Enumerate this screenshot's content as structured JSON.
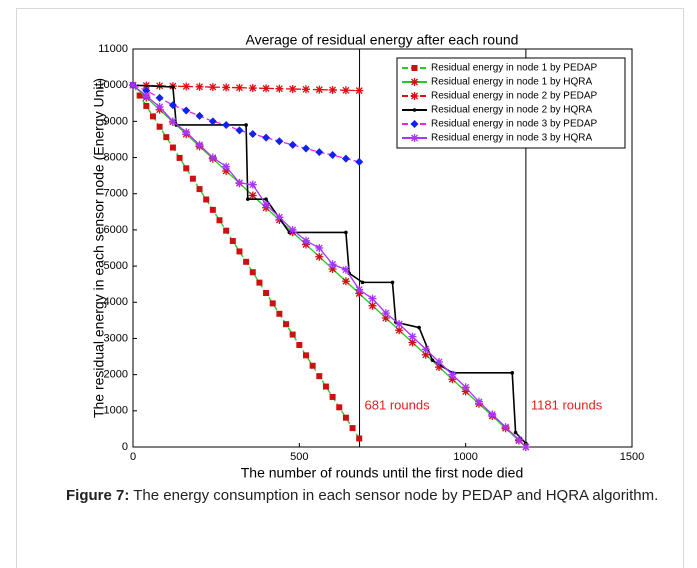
{
  "chart_data": {
    "type": "line",
    "title": "Average of residual energy after each round",
    "xlabel": "The number of rounds until the first node died",
    "ylabel": "The residual energy in each sensor node (Energy Unit)",
    "xlim": [
      0,
      1500
    ],
    "xticks": [
      0,
      500,
      1000,
      1500
    ],
    "ylim": [
      0,
      11000
    ],
    "yticks": [
      0,
      1000,
      2000,
      3000,
      4000,
      5000,
      6000,
      7000,
      8000,
      9000,
      10000,
      11000
    ],
    "grid": false,
    "legend": "upper right",
    "vlines": [
      {
        "x": 681,
        "label": "681 rounds"
      },
      {
        "x": 1181,
        "label": "1181 rounds"
      }
    ],
    "annotation_color": "#e02020",
    "series": [
      {
        "name": "Residual energy in node 1 by PEDAP",
        "color": "#22cc22",
        "dash": true,
        "marker": "square",
        "marker_color": "#cc1111",
        "x": [
          0,
          20,
          40,
          60,
          80,
          100,
          120,
          140,
          160,
          180,
          200,
          220,
          240,
          260,
          280,
          300,
          320,
          340,
          360,
          380,
          400,
          420,
          440,
          460,
          480,
          500,
          520,
          540,
          560,
          580,
          600,
          620,
          640,
          660,
          680
        ],
        "values": [
          10000,
          9713,
          9426,
          9138,
          8851,
          8564,
          8277,
          7990,
          7702,
          7415,
          7128,
          6841,
          6554,
          6267,
          5979,
          5692,
          5405,
          5118,
          4831,
          4543,
          4256,
          3969,
          3682,
          3395,
          3107,
          2820,
          2533,
          2246,
          1958,
          1671,
          1384,
          1097,
          810,
          523,
          235
        ]
      },
      {
        "name": "Residual energy in node 1 by HQRA",
        "color": "#22cc22",
        "dash": false,
        "marker": "star",
        "marker_color": "#cc1111",
        "x": [
          0,
          40,
          80,
          120,
          160,
          200,
          240,
          280,
          320,
          360,
          400,
          440,
          480,
          520,
          560,
          600,
          640,
          680,
          720,
          760,
          800,
          840,
          880,
          920,
          960,
          1000,
          1040,
          1080,
          1120,
          1160,
          1181
        ],
        "values": [
          10000,
          9661,
          9323,
          8984,
          8645,
          8307,
          7968,
          7629,
          7291,
          6952,
          6613,
          6275,
          5936,
          5597,
          5258,
          4920,
          4581,
          4242,
          3904,
          3565,
          3226,
          2888,
          2549,
          2210,
          1872,
          1533,
          1194,
          856,
          517,
          178,
          0
        ]
      },
      {
        "name": "Residual energy in node 2 by PEDAP",
        "color": "#dd1111",
        "dash": true,
        "marker": "star",
        "marker_color": "#dd1111",
        "x": [
          0,
          40,
          80,
          120,
          160,
          200,
          240,
          280,
          320,
          360,
          400,
          440,
          480,
          520,
          560,
          600,
          640,
          680
        ],
        "values": [
          10000,
          9991,
          9982,
          9974,
          9965,
          9956,
          9947,
          9938,
          9930,
          9921,
          9912,
          9903,
          9894,
          9886,
          9877,
          9868,
          9859,
          9850
        ]
      },
      {
        "name": "Residual energy in node 2 by HQRA",
        "color": "#000000",
        "dash": false,
        "marker": "dot",
        "marker_color": "#000000",
        "x": [
          0,
          120,
          130,
          340,
          345,
          400,
          470,
          640,
          650,
          690,
          780,
          790,
          860,
          900,
          960,
          1140,
          1150,
          1181
        ],
        "values": [
          10000,
          9950,
          8900,
          8900,
          6850,
          6850,
          5930,
          5930,
          4800,
          4550,
          4550,
          3450,
          3300,
          2400,
          2050,
          2050,
          400,
          100
        ]
      },
      {
        "name": "Residual energy in node 3 by PEDAP",
        "color": "#ee22ee",
        "dash": true,
        "marker": "diamond",
        "marker_color": "#1122ee",
        "x": [
          0,
          40,
          80,
          120,
          160,
          200,
          240,
          280,
          320,
          360,
          400,
          440,
          480,
          520,
          560,
          600,
          640,
          680
        ],
        "values": [
          10000,
          9850,
          9650,
          9450,
          9300,
          9150,
          9000,
          8900,
          8750,
          8650,
          8550,
          8450,
          8350,
          8250,
          8150,
          8070,
          7970,
          7880
        ]
      },
      {
        "name": "Residual energy in node 3 by HQRA",
        "color": "#aa33ff",
        "dash": false,
        "marker": "star",
        "marker_color": "#aa33ff",
        "x": [
          0,
          40,
          80,
          120,
          160,
          200,
          240,
          280,
          320,
          360,
          400,
          440,
          480,
          520,
          560,
          600,
          640,
          680,
          720,
          760,
          800,
          840,
          880,
          920,
          960,
          1000,
          1040,
          1080,
          1120,
          1160,
          1181
        ],
        "values": [
          10000,
          9700,
          9400,
          9000,
          8700,
          8350,
          8000,
          7750,
          7300,
          7250,
          6700,
          6350,
          6000,
          5700,
          5500,
          5050,
          4900,
          4350,
          4100,
          3700,
          3400,
          3050,
          2700,
          2350,
          2000,
          1650,
          1250,
          900,
          550,
          200,
          0
        ]
      }
    ]
  },
  "caption": {
    "label": "Figure 7:",
    "text": "The energy consumption in each sensor node by PEDAP and HQRA algorithm."
  }
}
